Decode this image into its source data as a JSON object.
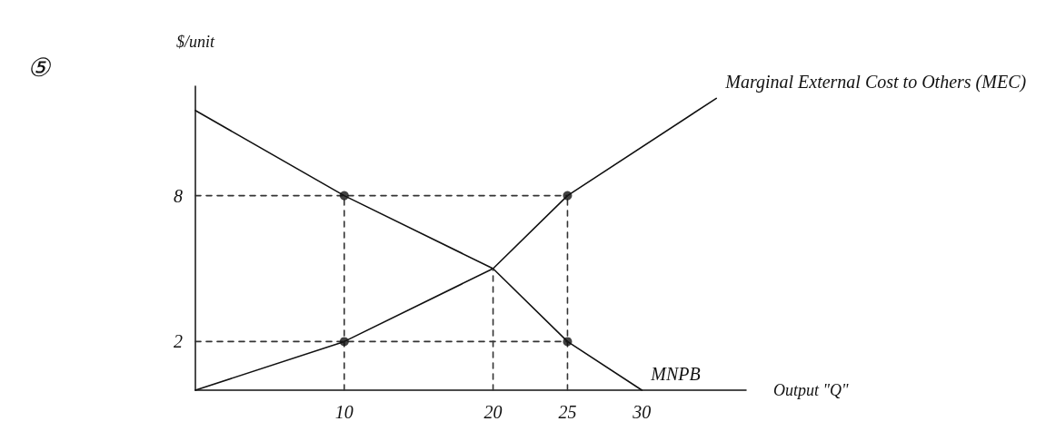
{
  "chart_data": {
    "type": "line",
    "xlabel": "Output \"Q\"",
    "ylabel": "$/unit",
    "annotations": [
      "⑤"
    ],
    "xlim": [
      0,
      37
    ],
    "ylim": [
      0,
      12.5
    ],
    "xticks": [
      10,
      20,
      25,
      30
    ],
    "yticks": [
      2,
      8
    ],
    "grid": false,
    "legend": false,
    "marker": "none",
    "line_style": "solid",
    "series": [
      {
        "name": "Marginal External Cost to Others (MEC)",
        "color": "#111111",
        "x": [
          0,
          10,
          20,
          25,
          35
        ],
        "values": [
          0,
          2,
          5,
          8,
          12
        ]
      },
      {
        "name": "MNPB",
        "color": "#111111",
        "x": [
          0,
          10,
          20,
          25,
          30
        ],
        "values": [
          11.5,
          8,
          5,
          2,
          0
        ]
      },
      {
        "color": "#333333",
        "line_style": "dashed",
        "x": [
          0,
          25
        ],
        "values": [
          8,
          8
        ]
      },
      {
        "color": "#333333",
        "line_style": "dashed",
        "x": [
          0,
          25
        ],
        "values": [
          2,
          2
        ]
      },
      {
        "color": "#333333",
        "line_style": "dashed",
        "x": [
          10,
          10
        ],
        "values": [
          0,
          8
        ]
      },
      {
        "color": "#333333",
        "line_style": "dashed",
        "x": [
          20,
          20
        ],
        "values": [
          0,
          5
        ]
      },
      {
        "color": "#333333",
        "line_style": "dashed",
        "x": [
          25,
          25
        ],
        "values": [
          0,
          8
        ]
      },
      {
        "type": "scatter",
        "marker": "circle",
        "color": "#111111",
        "x": [
          10,
          25,
          10,
          25
        ],
        "values": [
          8,
          8,
          2,
          2
        ]
      }
    ]
  }
}
